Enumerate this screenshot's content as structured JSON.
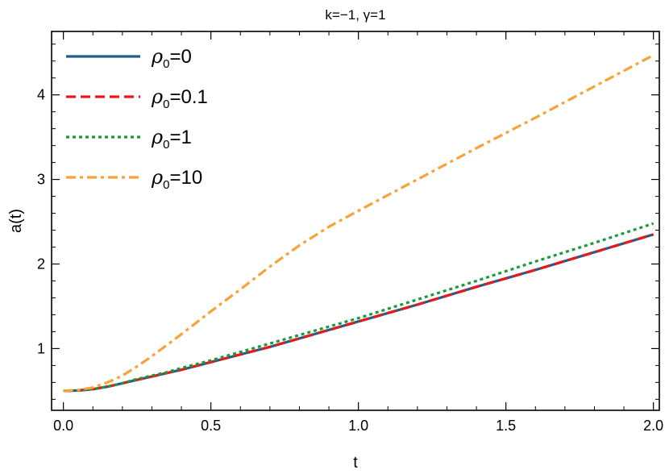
{
  "chart_data": {
    "type": "line",
    "title": "k=−1, γ=1",
    "xlabel": "t",
    "ylabel": "a(t)",
    "xlim": [
      -0.04,
      2.02
    ],
    "ylim": [
      0.27,
      4.75
    ],
    "xticks": [
      0.0,
      0.5,
      1.0,
      1.5,
      2.0
    ],
    "xtick_labels": [
      "0.0",
      "0.5",
      "1.0",
      "1.5",
      "2.0"
    ],
    "yticks": [
      1,
      2,
      3,
      4
    ],
    "ytick_labels": [
      "1",
      "2",
      "3",
      "4"
    ],
    "legend_position": "top-left",
    "series": [
      {
        "name": "ρ₀=0",
        "legend_symbol": "ρ",
        "legend_sub": "0",
        "legend_value": "=0",
        "color": "#1f5f8f",
        "style": "solid",
        "x": [
          0.0,
          0.05,
          0.1,
          0.15,
          0.2,
          0.25,
          0.3,
          0.35,
          0.4,
          0.5,
          0.6,
          0.7,
          0.8,
          0.9,
          1.0,
          1.2,
          1.4,
          1.6,
          1.8,
          2.0
        ],
        "y": [
          0.5,
          0.505,
          0.52,
          0.55,
          0.59,
          0.63,
          0.67,
          0.71,
          0.75,
          0.84,
          0.93,
          1.02,
          1.12,
          1.22,
          1.32,
          1.52,
          1.73,
          1.93,
          2.14,
          2.35
        ]
      },
      {
        "name": "ρ₀=0.1",
        "legend_symbol": "ρ",
        "legend_sub": "0",
        "legend_value": "=0.1",
        "color": "#e41a1c",
        "style": "dashed",
        "x": [
          0.0,
          0.05,
          0.1,
          0.15,
          0.2,
          0.25,
          0.3,
          0.35,
          0.4,
          0.5,
          0.6,
          0.7,
          0.8,
          0.9,
          1.0,
          1.2,
          1.4,
          1.6,
          1.8,
          2.0
        ],
        "y": [
          0.5,
          0.505,
          0.52,
          0.55,
          0.59,
          0.63,
          0.67,
          0.71,
          0.75,
          0.84,
          0.93,
          1.02,
          1.12,
          1.22,
          1.32,
          1.52,
          1.73,
          1.93,
          2.14,
          2.35
        ]
      },
      {
        "name": "ρ₀=1",
        "legend_symbol": "ρ",
        "legend_sub": "0",
        "legend_value": "=1",
        "color": "#1a9a3a",
        "style": "dotted",
        "x": [
          0.0,
          0.05,
          0.1,
          0.15,
          0.2,
          0.25,
          0.3,
          0.35,
          0.4,
          0.5,
          0.6,
          0.7,
          0.8,
          0.9,
          1.0,
          1.2,
          1.4,
          1.6,
          1.8,
          2.0
        ],
        "y": [
          0.5,
          0.505,
          0.52,
          0.55,
          0.59,
          0.64,
          0.68,
          0.72,
          0.77,
          0.86,
          0.96,
          1.06,
          1.16,
          1.26,
          1.36,
          1.58,
          1.8,
          2.03,
          2.25,
          2.48
        ]
      },
      {
        "name": "ρ₀=10",
        "legend_symbol": "ρ",
        "legend_sub": "0",
        "legend_value": "=10",
        "color": "#f8a23a",
        "style": "dashdot",
        "x": [
          0.0,
          0.05,
          0.1,
          0.15,
          0.2,
          0.25,
          0.3,
          0.35,
          0.4,
          0.5,
          0.6,
          0.7,
          0.8,
          0.9,
          1.0,
          1.2,
          1.4,
          1.6,
          1.8,
          2.0
        ],
        "y": [
          0.5,
          0.51,
          0.54,
          0.6,
          0.68,
          0.79,
          0.91,
          1.04,
          1.17,
          1.44,
          1.7,
          1.97,
          2.22,
          2.44,
          2.63,
          3.0,
          3.37,
          3.73,
          4.1,
          4.47
        ]
      }
    ]
  }
}
